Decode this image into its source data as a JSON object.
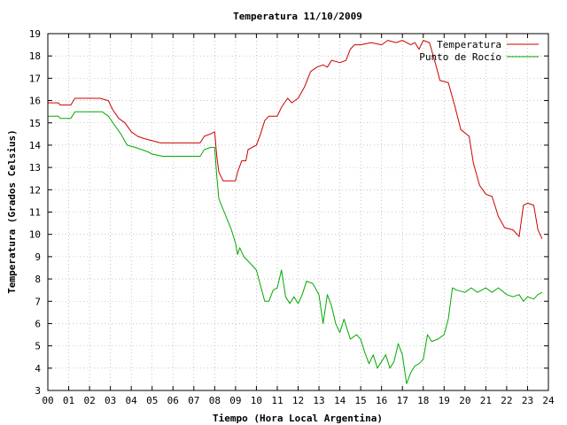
{
  "chart_data": {
    "type": "line",
    "title": "Temperatura 11/10/2009",
    "xlabel": "Tiempo (Hora Local Argentina)",
    "ylabel": "Temperatura (Grados Celsius)",
    "xlim": [
      0,
      24
    ],
    "ylim": [
      3,
      19
    ],
    "grid": true,
    "legend_position": "top-right",
    "x_tick_labels": [
      "00",
      "01",
      "02",
      "03",
      "04",
      "05",
      "06",
      "07",
      "08",
      "09",
      "10",
      "11",
      "12",
      "13",
      "14",
      "15",
      "16",
      "17",
      "18",
      "19",
      "20",
      "21",
      "22",
      "23",
      "24"
    ],
    "y_tick_labels": [
      "3",
      "4",
      "5",
      "6",
      "7",
      "8",
      "9",
      "10",
      "11",
      "12",
      "13",
      "14",
      "15",
      "16",
      "17",
      "18",
      "19"
    ],
    "series": [
      {
        "name": "Temperatura",
        "color": "#cc0000",
        "points": [
          [
            0.0,
            15.9
          ],
          [
            0.5,
            15.9
          ],
          [
            0.6,
            15.8
          ],
          [
            1.1,
            15.8
          ],
          [
            1.3,
            16.1
          ],
          [
            2.0,
            16.1
          ],
          [
            2.5,
            16.1
          ],
          [
            2.9,
            16.0
          ],
          [
            3.1,
            15.6
          ],
          [
            3.4,
            15.2
          ],
          [
            3.7,
            15.0
          ],
          [
            4.0,
            14.6
          ],
          [
            4.3,
            14.4
          ],
          [
            4.6,
            14.3
          ],
          [
            5.0,
            14.2
          ],
          [
            5.4,
            14.1
          ],
          [
            6.0,
            14.1
          ],
          [
            6.5,
            14.1
          ],
          [
            7.0,
            14.1
          ],
          [
            7.3,
            14.1
          ],
          [
            7.5,
            14.4
          ],
          [
            7.8,
            14.5
          ],
          [
            8.0,
            14.6
          ],
          [
            8.1,
            13.5
          ],
          [
            8.2,
            12.8
          ],
          [
            8.4,
            12.4
          ],
          [
            8.7,
            12.4
          ],
          [
            9.0,
            12.4
          ],
          [
            9.1,
            12.8
          ],
          [
            9.3,
            13.3
          ],
          [
            9.5,
            13.3
          ],
          [
            9.6,
            13.8
          ],
          [
            10.0,
            14.0
          ],
          [
            10.2,
            14.5
          ],
          [
            10.4,
            15.1
          ],
          [
            10.6,
            15.3
          ],
          [
            11.0,
            15.3
          ],
          [
            11.2,
            15.7
          ],
          [
            11.5,
            16.1
          ],
          [
            11.7,
            15.9
          ],
          [
            12.0,
            16.1
          ],
          [
            12.3,
            16.6
          ],
          [
            12.6,
            17.3
          ],
          [
            12.9,
            17.5
          ],
          [
            13.2,
            17.6
          ],
          [
            13.4,
            17.5
          ],
          [
            13.6,
            17.8
          ],
          [
            14.0,
            17.7
          ],
          [
            14.3,
            17.8
          ],
          [
            14.5,
            18.3
          ],
          [
            14.7,
            18.5
          ],
          [
            15.0,
            18.5
          ],
          [
            15.5,
            18.6
          ],
          [
            16.0,
            18.5
          ],
          [
            16.3,
            18.7
          ],
          [
            16.7,
            18.6
          ],
          [
            17.0,
            18.7
          ],
          [
            17.2,
            18.6
          ],
          [
            17.4,
            18.5
          ],
          [
            17.6,
            18.6
          ],
          [
            17.8,
            18.3
          ],
          [
            18.0,
            18.7
          ],
          [
            18.3,
            18.6
          ],
          [
            18.6,
            17.6
          ],
          [
            18.8,
            16.9
          ],
          [
            19.2,
            16.8
          ],
          [
            19.5,
            15.8
          ],
          [
            19.8,
            14.7
          ],
          [
            20.2,
            14.4
          ],
          [
            20.4,
            13.2
          ],
          [
            20.7,
            12.2
          ],
          [
            21.0,
            11.8
          ],
          [
            21.3,
            11.7
          ],
          [
            21.6,
            10.8
          ],
          [
            21.9,
            10.3
          ],
          [
            22.3,
            10.2
          ],
          [
            22.6,
            9.9
          ],
          [
            22.8,
            11.3
          ],
          [
            23.0,
            11.4
          ],
          [
            23.3,
            11.3
          ],
          [
            23.5,
            10.2
          ],
          [
            23.7,
            9.8
          ]
        ]
      },
      {
        "name": "Punto de Rocío",
        "color": "#00aa00",
        "points": [
          [
            0.0,
            15.3
          ],
          [
            0.5,
            15.3
          ],
          [
            0.6,
            15.2
          ],
          [
            1.1,
            15.2
          ],
          [
            1.3,
            15.5
          ],
          [
            2.0,
            15.5
          ],
          [
            2.6,
            15.5
          ],
          [
            2.9,
            15.3
          ],
          [
            3.2,
            14.9
          ],
          [
            3.5,
            14.5
          ],
          [
            3.8,
            14.0
          ],
          [
            4.2,
            13.9
          ],
          [
            4.5,
            13.8
          ],
          [
            4.8,
            13.7
          ],
          [
            5.0,
            13.6
          ],
          [
            5.5,
            13.5
          ],
          [
            6.0,
            13.5
          ],
          [
            6.5,
            13.5
          ],
          [
            7.0,
            13.5
          ],
          [
            7.3,
            13.5
          ],
          [
            7.5,
            13.8
          ],
          [
            7.8,
            13.9
          ],
          [
            8.0,
            13.9
          ],
          [
            8.1,
            12.6
          ],
          [
            8.2,
            11.6
          ],
          [
            8.5,
            10.9
          ],
          [
            8.8,
            10.2
          ],
          [
            9.0,
            9.6
          ],
          [
            9.1,
            9.1
          ],
          [
            9.2,
            9.4
          ],
          [
            9.4,
            9.0
          ],
          [
            9.7,
            8.7
          ],
          [
            10.0,
            8.4
          ],
          [
            10.2,
            7.7
          ],
          [
            10.4,
            7.0
          ],
          [
            10.6,
            7.0
          ],
          [
            10.8,
            7.5
          ],
          [
            11.0,
            7.6
          ],
          [
            11.2,
            8.4
          ],
          [
            11.4,
            7.2
          ],
          [
            11.6,
            6.9
          ],
          [
            11.8,
            7.2
          ],
          [
            12.0,
            6.9
          ],
          [
            12.2,
            7.3
          ],
          [
            12.4,
            7.9
          ],
          [
            12.7,
            7.8
          ],
          [
            13.0,
            7.3
          ],
          [
            13.2,
            6.0
          ],
          [
            13.4,
            7.3
          ],
          [
            13.6,
            6.8
          ],
          [
            13.8,
            6.0
          ],
          [
            14.0,
            5.6
          ],
          [
            14.2,
            6.2
          ],
          [
            14.5,
            5.3
          ],
          [
            14.8,
            5.5
          ],
          [
            15.0,
            5.3
          ],
          [
            15.2,
            4.7
          ],
          [
            15.4,
            4.2
          ],
          [
            15.6,
            4.6
          ],
          [
            15.8,
            4.0
          ],
          [
            16.0,
            4.3
          ],
          [
            16.2,
            4.6
          ],
          [
            16.4,
            4.0
          ],
          [
            16.6,
            4.3
          ],
          [
            16.8,
            5.1
          ],
          [
            17.0,
            4.6
          ],
          [
            17.2,
            3.3
          ],
          [
            17.4,
            3.8
          ],
          [
            17.6,
            4.1
          ],
          [
            17.8,
            4.2
          ],
          [
            18.0,
            4.4
          ],
          [
            18.2,
            5.5
          ],
          [
            18.4,
            5.2
          ],
          [
            18.7,
            5.3
          ],
          [
            19.0,
            5.5
          ],
          [
            19.2,
            6.2
          ],
          [
            19.4,
            7.6
          ],
          [
            19.6,
            7.5
          ],
          [
            20.0,
            7.4
          ],
          [
            20.3,
            7.6
          ],
          [
            20.6,
            7.4
          ],
          [
            21.0,
            7.6
          ],
          [
            21.3,
            7.4
          ],
          [
            21.6,
            7.6
          ],
          [
            22.0,
            7.3
          ],
          [
            22.3,
            7.2
          ],
          [
            22.6,
            7.3
          ],
          [
            22.8,
            7.0
          ],
          [
            23.0,
            7.2
          ],
          [
            23.3,
            7.1
          ],
          [
            23.5,
            7.3
          ],
          [
            23.7,
            7.4
          ]
        ]
      }
    ]
  }
}
